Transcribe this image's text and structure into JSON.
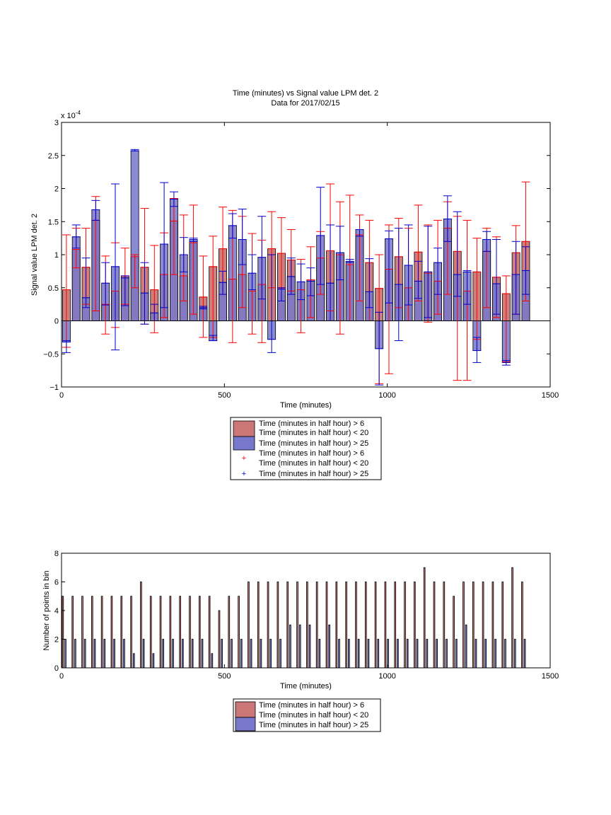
{
  "figure": {
    "title": "Time (minutes) vs Signal value LPM det. 2",
    "subtitle": "Data for 2017/02/15"
  },
  "chart_data": [
    {
      "type": "bar",
      "title": "Time (minutes) vs Signal value LPM det. 2",
      "subtitle": "Data for 2017/02/15",
      "xlabel": "Time (minutes)",
      "ylabel": "Signal value LPM det. 2",
      "exponent_label": "x 10",
      "exponent_power": "-4",
      "xlim": [
        0,
        1500
      ],
      "ylim": [
        -1,
        3
      ],
      "y_scale": 0.0001,
      "xticks": [
        0,
        500,
        1000,
        1500
      ],
      "xtick_labels": [
        "0",
        "500",
        "1000",
        "1500"
      ],
      "yticks": [
        -1,
        -0.5,
        0,
        0.5,
        1,
        1.5,
        2,
        2.5,
        3
      ],
      "ytick_labels": [
        "−1",
        "−0.5",
        "0",
        "0.5",
        "1",
        "1.5",
        "2",
        "2.5",
        "3"
      ],
      "grid": false,
      "legend_position": "below",
      "legend": [
        {
          "kind": "patch",
          "color": "#cc7777",
          "lines": [
            "Time (minutes in half hour) > 6",
            "Time (minutes in half hour) < 20"
          ]
        },
        {
          "kind": "patch",
          "color": "#7777cc",
          "lines": [
            "Time (minutes in half hour) > 25"
          ]
        },
        {
          "kind": "marker",
          "color": "#ff0000",
          "lines": [
            "Time (minutes in half hour) > 6",
            "Time (minutes in half hour) < 20"
          ]
        },
        {
          "kind": "marker",
          "color": "#0000cc",
          "lines": [
            "Time (minutes in half hour) > 25"
          ]
        }
      ],
      "bin_width": 30,
      "x": [
        15,
        45,
        75,
        105,
        135,
        165,
        195,
        225,
        255,
        285,
        315,
        345,
        375,
        405,
        435,
        465,
        495,
        525,
        555,
        585,
        615,
        645,
        675,
        705,
        735,
        765,
        795,
        825,
        855,
        885,
        915,
        945,
        975,
        1005,
        1035,
        1065,
        1095,
        1125,
        1155,
        1185,
        1215,
        1245,
        1275,
        1305,
        1335,
        1365,
        1395,
        1425
      ],
      "series": [
        {
          "name": "Time (minutes in half hour) > 6 Time (minutes in half hour) < 20",
          "color": "#cc7777",
          "errorbar_color": "#ff0000",
          "values": [
            0.47,
            1.08,
            0.81,
            1.52,
            0.25,
            0.45,
            0.68,
            0.97,
            0.81,
            0.47,
            0.7,
            1.51,
            0.68,
            1.18,
            0.36,
            0.82,
            1.09,
            0.63,
            0.7,
            0.45,
            0.55,
            1.09,
            1.02,
            0.92,
            0.47,
            0.62,
            0.95,
            1.06,
            1.0,
            0.85,
            1.3,
            0.88,
            0.49,
            0.78,
            0.97,
            0.5,
            1.04,
            0.72,
            0.6,
            1.4,
            1.05,
            0.45,
            0.74,
            1.05,
            0.66,
            0.41,
            1.03,
            1.2
          ],
          "err_low": [
            -0.4,
            0.8,
            0.25,
            0.15,
            -0.2,
            -0.1,
            0.25,
            0.5,
            -0.05,
            -0.18,
            0.05,
            0.7,
            0.3,
            0.1,
            -0.25,
            -0.25,
            0.4,
            -0.33,
            0.2,
            -0.2,
            -0.33,
            0.5,
            0.5,
            0.45,
            -0.18,
            0.05,
            0.4,
            0.15,
            -0.2,
            0.0,
            0.3,
            0.0,
            -0.95,
            -0.8,
            0.2,
            0.0,
            0.3,
            -0.02,
            0.1,
            0.4,
            -0.9,
            -0.9,
            -0.28,
            0.2,
            0.05,
            -0.62,
            0.1,
            0.3
          ],
          "err_high": [
            1.3,
            1.4,
            1.4,
            1.88,
            0.98,
            1.18,
            1.1,
            1.0,
            1.7,
            1.14,
            1.33,
            1.85,
            1.6,
            1.75,
            0.98,
            1.28,
            1.72,
            1.67,
            1.58,
            1.32,
            1.22,
            1.65,
            1.56,
            1.38,
            0.93,
            1.12,
            1.35,
            2.07,
            1.8,
            1.9,
            1.6,
            1.52,
            1.0,
            1.45,
            1.55,
            1.4,
            1.75,
            1.45,
            1.52,
            1.8,
            1.58,
            1.52,
            1.25,
            1.4,
            1.27,
            0.68,
            1.44,
            2.1
          ]
        },
        {
          "name": "Time (minutes in half hour) > 25",
          "color": "#7777cc",
          "errorbar_color": "#0000cc",
          "values": [
            -0.32,
            1.27,
            0.35,
            1.68,
            0.57,
            0.82,
            0.65,
            2.57,
            0.42,
            0.12,
            1.16,
            1.84,
            1.0,
            1.23,
            0.2,
            -0.3,
            0.58,
            1.44,
            1.23,
            0.72,
            0.96,
            -0.28,
            0.48,
            0.67,
            0.59,
            0.6,
            1.29,
            0.57,
            1.03,
            0.9,
            1.38,
            0.44,
            -0.42,
            1.24,
            0.55,
            0.84,
            0.6,
            0.74,
            0.88,
            1.54,
            0.7,
            0.74,
            -0.45,
            1.23,
            0.56,
            -0.63,
            0.7,
            0.76
          ],
          "err_low": [
            -0.48,
            1.1,
            0.2,
            1.52,
            0.24,
            -0.44,
            0.23,
            2.57,
            -0.05,
            0.0,
            0.2,
            1.73,
            0.74,
            1.2,
            0.18,
            -0.3,
            0.4,
            1.25,
            0.85,
            0.47,
            0.33,
            -0.48,
            0.3,
            0.4,
            0.32,
            0.38,
            0.55,
            0.0,
            0.62,
            0.88,
            1.28,
            0.2,
            -0.97,
            0.27,
            -0.3,
            0.24,
            0.34,
            0.05,
            0.4,
            1.2,
            0.37,
            0.25,
            -0.63,
            1.05,
            0.1,
            -0.67,
            0.1,
            0.4
          ],
          "err_high": [
            -0.3,
            1.45,
            0.95,
            1.82,
            0.88,
            2.07,
            0.68,
            2.59,
            0.88,
            0.25,
            2.09,
            1.95,
            1.26,
            1.25,
            0.22,
            -0.22,
            0.75,
            1.62,
            1.69,
            1.0,
            1.58,
            1.0,
            0.5,
            0.95,
            0.86,
            0.8,
            2.02,
            1.45,
            1.43,
            0.93,
            1.38,
            0.94,
            0.13,
            1.36,
            1.4,
            1.45,
            0.9,
            1.43,
            1.1,
            1.89,
            1.65,
            0.76,
            -0.25,
            1.35,
            1.23,
            -0.6,
            1.2,
            1.12
          ]
        }
      ]
    },
    {
      "type": "bar",
      "xlabel": "Time (minutes)",
      "ylabel": "Number of points in bin",
      "xlim": [
        0,
        1500
      ],
      "ylim": [
        0,
        8
      ],
      "xticks": [
        0,
        500,
        1000,
        1500
      ],
      "xtick_labels": [
        "0",
        "500",
        "1000",
        "1500"
      ],
      "yticks": [
        0,
        2,
        4,
        6,
        8
      ],
      "ytick_labels": [
        "0",
        "2",
        "4",
        "6",
        "8"
      ],
      "grid": false,
      "legend_position": "below",
      "legend": [
        {
          "kind": "patch",
          "color": "#cc7777",
          "lines": [
            "Time (minutes in half hour) > 6",
            "Time (minutes in half hour) < 20"
          ]
        },
        {
          "kind": "patch",
          "color": "#7777cc",
          "lines": [
            "Time (minutes in half hour) > 25"
          ]
        }
      ],
      "x": [
        15,
        45,
        75,
        105,
        135,
        165,
        195,
        225,
        255,
        285,
        315,
        345,
        375,
        405,
        435,
        465,
        495,
        525,
        555,
        585,
        615,
        645,
        675,
        705,
        735,
        765,
        795,
        825,
        855,
        885,
        915,
        945,
        975,
        1005,
        1035,
        1065,
        1095,
        1125,
        1155,
        1185,
        1215,
        1245,
        1275,
        1305,
        1335,
        1365,
        1395,
        1425
      ],
      "series": [
        {
          "name": "Time (minutes in half hour) > 6 Time (minutes in half hour) < 20",
          "color": "#cc7777",
          "values": [
            5,
            5,
            5,
            5,
            5,
            5,
            5,
            5,
            6,
            5,
            5,
            5,
            5,
            5,
            5,
            5,
            4,
            5,
            5,
            6,
            6,
            6,
            6,
            6,
            6,
            6,
            6,
            6,
            6,
            6,
            6,
            6,
            6,
            6,
            6,
            6,
            6,
            7,
            6,
            6,
            5,
            6,
            6,
            6,
            6,
            6,
            7,
            6
          ]
        },
        {
          "name": "Time (minutes in half hour) > 25",
          "color": "#7777cc",
          "values": [
            2,
            2,
            2,
            2,
            2,
            2,
            2,
            1,
            2,
            1,
            2,
            2,
            2,
            2,
            2,
            1,
            2,
            2,
            2,
            2,
            2,
            2,
            2,
            3,
            3,
            3,
            2,
            3,
            2,
            2,
            2,
            2,
            2,
            2,
            2,
            2,
            2,
            2,
            2,
            2,
            2,
            3,
            2,
            2,
            2,
            2,
            2,
            2
          ]
        }
      ]
    }
  ]
}
